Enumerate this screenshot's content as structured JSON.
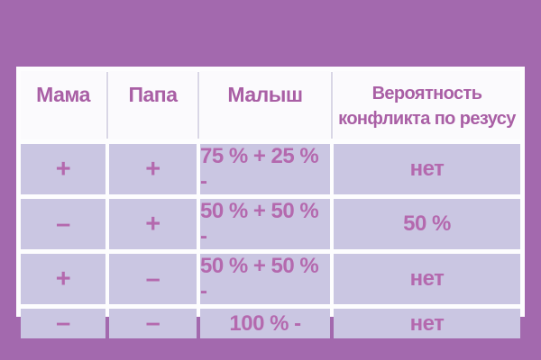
{
  "colors": {
    "page_bg": "#a369ae",
    "table_border": "#fdfdfe",
    "header_bg": "#fbfafd",
    "header_text": "#a95fa5",
    "header_sep": "#d9d6e6",
    "cell_bg": "#cac6e2",
    "cell_text": "#b469ae"
  },
  "chart_data": {
    "type": "table",
    "columns": [
      "Мама",
      "Папа",
      "Малыш",
      "Вероятность конфликта по резусу"
    ],
    "rows": [
      [
        "+",
        "+",
        "75 % + 25 % -",
        "нет"
      ],
      [
        "–",
        "+",
        "50 % + 50 % -",
        "50 %"
      ],
      [
        "+",
        "–",
        "50 % + 50 % -",
        "нет"
      ],
      [
        "–",
        "–",
        "100 % -",
        "нет"
      ]
    ]
  }
}
